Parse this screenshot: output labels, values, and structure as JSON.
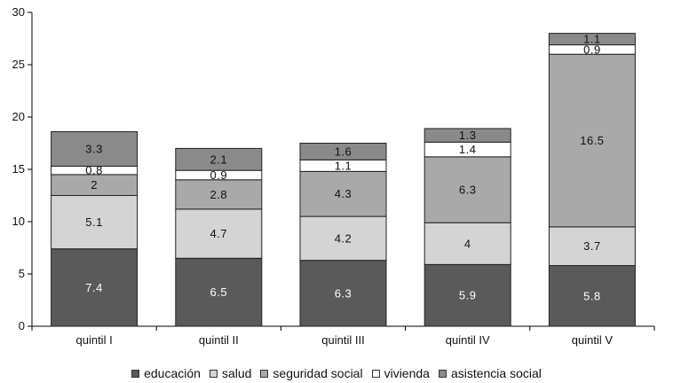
{
  "chart_data": {
    "type": "bar",
    "stacked": true,
    "categories": [
      "quintil I",
      "quintil II",
      "quintil III",
      "quintil IV",
      "quintil V"
    ],
    "series": [
      {
        "name": "educación",
        "color": "#5a5a5a",
        "label_color": "#ffffff",
        "values": [
          7.4,
          6.5,
          6.3,
          5.9,
          5.8
        ]
      },
      {
        "name": "salud",
        "color": "#d4d4d4",
        "label_color": "#111111",
        "values": [
          5.1,
          4.7,
          4.2,
          4,
          3.7
        ]
      },
      {
        "name": "seguridad social",
        "color": "#a9a9a9",
        "label_color": "#111111",
        "values": [
          2,
          2.8,
          4.3,
          6.3,
          16.5
        ]
      },
      {
        "name": "vivienda",
        "color": "#ffffff",
        "label_color": "#111111",
        "values": [
          0.8,
          0.9,
          1.1,
          1.4,
          0.9
        ]
      },
      {
        "name": "asistencia social",
        "color": "#8a8a8a",
        "label_color": "#111111",
        "values": [
          3.3,
          2.1,
          1.6,
          1.3,
          1.1
        ]
      }
    ],
    "ylim": [
      0,
      30
    ],
    "yticks": [
      0,
      5,
      10,
      15,
      20,
      25,
      30
    ],
    "title": "",
    "xlabel": "",
    "ylabel": "",
    "grid": false,
    "legend_position": "bottom"
  }
}
